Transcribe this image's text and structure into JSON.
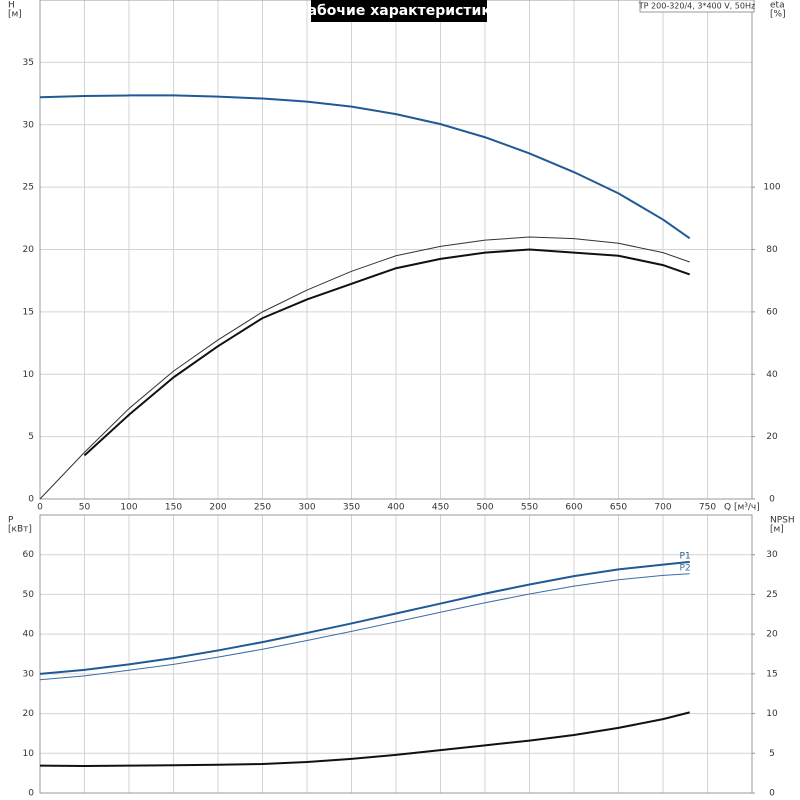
{
  "chart_data": [
    {
      "type": "line",
      "title": "Рабочие характеристики",
      "model": "TP 200-320/4, 3*400 V, 50Hz",
      "ylabel": "H",
      "yunit": "[м]",
      "y2label": "eta",
      "y2unit": "[%]",
      "xlabel": "Q [м³/ч]",
      "x": [
        0,
        50,
        100,
        150,
        200,
        250,
        300,
        350,
        400,
        450,
        500,
        550,
        600,
        650,
        700,
        730
      ],
      "xlim": [
        0,
        800
      ],
      "xticks": [
        0,
        50,
        100,
        150,
        200,
        250,
        300,
        350,
        400,
        450,
        500,
        550,
        600,
        650,
        700,
        750
      ],
      "ylim": [
        0,
        40
      ],
      "yticks": [
        0,
        5,
        10,
        15,
        20,
        25,
        30,
        35
      ],
      "y2lim": [
        0,
        160
      ],
      "y2ticks": [
        0,
        20,
        40,
        60,
        80,
        100
      ],
      "grid": true,
      "series": [
        {
          "color": "#1f5a96",
          "axis": "y",
          "values": [
            32.2,
            32.3,
            32.35,
            32.35,
            32.25,
            32.1,
            31.85,
            31.45,
            30.85,
            30.05,
            29.0,
            27.7,
            26.2,
            24.5,
            22.4,
            20.9
          ]
        },
        {
          "color": "#333333",
          "axis": "y2",
          "values": [
            0,
            15,
            29,
            41,
            51,
            60,
            67,
            73,
            78,
            81,
            83,
            84,
            83.5,
            82,
            79,
            76
          ]
        },
        {
          "color": "#111111",
          "axis": "y2",
          "values": [
            null,
            14,
            27,
            39,
            49,
            58,
            64,
            69,
            74,
            77,
            79,
            80,
            79,
            78,
            75,
            72
          ]
        }
      ]
    },
    {
      "type": "line",
      "ylabel": "P",
      "yunit": "[кВт]",
      "y2label": "NPSH",
      "y2unit": "[м]",
      "x": [
        0,
        50,
        100,
        150,
        200,
        250,
        300,
        350,
        400,
        450,
        500,
        550,
        600,
        650,
        700,
        730
      ],
      "xlim": [
        0,
        800
      ],
      "ylim": [
        0,
        70
      ],
      "yticks": [
        0,
        10,
        20,
        30,
        40,
        50,
        60
      ],
      "y2lim": [
        0,
        35
      ],
      "y2ticks": [
        0,
        5,
        10,
        15,
        20,
        25,
        30
      ],
      "grid": true,
      "series": [
        {
          "name": "P1",
          "color": "#1f5a96",
          "axis": "y",
          "values": [
            30,
            31,
            32.4,
            34,
            35.9,
            38,
            40.3,
            42.7,
            45.2,
            47.7,
            50.2,
            52.5,
            54.6,
            56.3,
            57.5,
            58.2
          ]
        },
        {
          "name": "P2",
          "color": "#3a6ea5",
          "axis": "y",
          "values": [
            28.5,
            29.5,
            30.9,
            32.4,
            34.2,
            36.2,
            38.4,
            40.7,
            43.1,
            45.5,
            47.9,
            50.1,
            52.1,
            53.7,
            54.8,
            55.2
          ]
        },
        {
          "color": "#111111",
          "axis": "y2",
          "values": [
            3.45,
            3.4,
            3.45,
            3.5,
            3.55,
            3.65,
            3.9,
            4.3,
            4.8,
            5.4,
            6.0,
            6.6,
            7.3,
            8.2,
            9.3,
            10.15
          ]
        }
      ]
    }
  ]
}
